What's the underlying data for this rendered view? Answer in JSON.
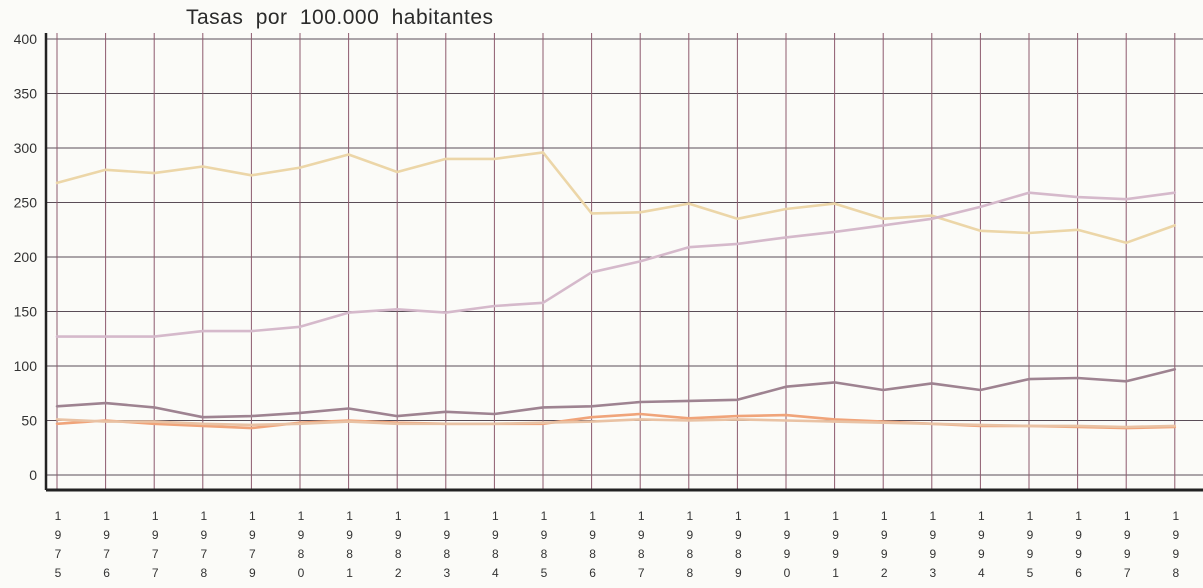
{
  "chart_data": {
    "type": "line",
    "title": "Tasas por 100.000 habitantes",
    "xlabel": "",
    "ylabel": "",
    "ylim": [
      0,
      400
    ],
    "yticks": [
      "0",
      "50",
      "100",
      "150",
      "200",
      "250",
      "300",
      "350",
      "400"
    ],
    "grid": true,
    "categories": [
      "1975",
      "1976",
      "1977",
      "1978",
      "1979",
      "1980",
      "1981",
      "1982",
      "1983",
      "1984",
      "1985",
      "1986",
      "1987",
      "1988",
      "1989",
      "1990",
      "1991",
      "1992",
      "1993",
      "1994",
      "1995",
      "1996",
      "1997",
      "1998"
    ],
    "series": [
      {
        "color": "#ecd6a8",
        "values": [
          268,
          280,
          277,
          283,
          275,
          282,
          294,
          278,
          290,
          290,
          296,
          240,
          241,
          249,
          235,
          244,
          249,
          235,
          238,
          224,
          222,
          225,
          213,
          229
        ]
      },
      {
        "color": "#d5b9cb",
        "values": [
          127,
          127,
          127,
          132,
          132,
          136,
          149,
          152,
          149,
          155,
          158,
          186,
          196,
          209,
          212,
          218,
          223,
          229,
          235,
          246,
          259,
          255,
          253,
          259
        ]
      },
      {
        "color": "#9e8391",
        "values": [
          63,
          66,
          62,
          53,
          54,
          57,
          61,
          54,
          58,
          56,
          62,
          63,
          67,
          68,
          69,
          81,
          85,
          78,
          84,
          78,
          88,
          89,
          86,
          97
        ]
      },
      {
        "color": "#f0a47a",
        "values": [
          47,
          50,
          47,
          45,
          43,
          48,
          50,
          48,
          47,
          47,
          47,
          53,
          56,
          52,
          54,
          55,
          51,
          49,
          47,
          45,
          45,
          44,
          43,
          44
        ]
      },
      {
        "color": "#e9c2a4",
        "values": [
          51,
          49,
          49,
          47,
          46,
          47,
          49,
          47,
          47,
          47,
          48,
          49,
          51,
          50,
          51,
          50,
          49,
          48,
          47,
          46,
          45,
          45,
          44,
          45
        ]
      }
    ]
  }
}
